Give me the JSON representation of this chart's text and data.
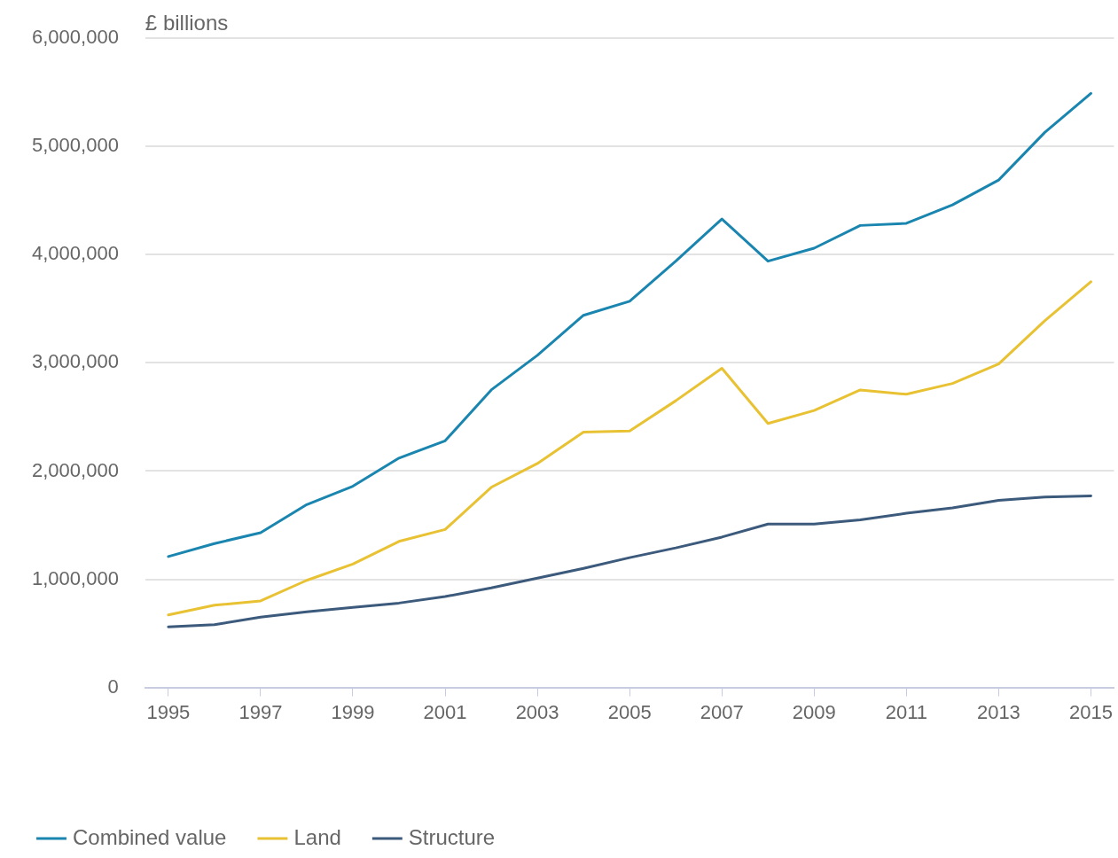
{
  "chart_data": {
    "type": "line",
    "ylabel": "£ billions",
    "x": [
      1995,
      1996,
      1997,
      1998,
      1999,
      2000,
      2001,
      2002,
      2003,
      2004,
      2005,
      2006,
      2007,
      2008,
      2009,
      2010,
      2011,
      2012,
      2013,
      2014,
      2015
    ],
    "series": [
      {
        "name": "Combined value",
        "color": "#1a86b0",
        "values": [
          1210000,
          1330000,
          1430000,
          1690000,
          1860000,
          2120000,
          2280000,
          2750000,
          3070000,
          3440000,
          3570000,
          3940000,
          4330000,
          3940000,
          4060000,
          4270000,
          4290000,
          4460000,
          4690000,
          5130000,
          5490000
        ]
      },
      {
        "name": "Land",
        "color": "#e8c233",
        "values": [
          670000,
          760000,
          800000,
          990000,
          1140000,
          1350000,
          1460000,
          1850000,
          2070000,
          2360000,
          2370000,
          2650000,
          2950000,
          2440000,
          2560000,
          2750000,
          2710000,
          2810000,
          2990000,
          3390000,
          3750000
        ]
      },
      {
        "name": "Structure",
        "color": "#3c5a7c",
        "values": [
          560000,
          580000,
          650000,
          700000,
          740000,
          780000,
          840000,
          920000,
          1010000,
          1100000,
          1200000,
          1290000,
          1390000,
          1510000,
          1510000,
          1550000,
          1610000,
          1660000,
          1730000,
          1760000,
          1770000
        ]
      }
    ],
    "xlim": [
      1994.5,
      2015.5
    ],
    "xticks": [
      1995,
      1997,
      1999,
      2001,
      2003,
      2005,
      2007,
      2009,
      2011,
      2013,
      2015
    ],
    "ylim": [
      0,
      6000000
    ],
    "yticks": [
      0,
      {
        "value": 1000000,
        "label": "1,000,000"
      },
      {
        "value": 2000000,
        "label": "2,000,000"
      },
      {
        "value": 3000000,
        "label": "3,000,000"
      },
      {
        "value": 4000000,
        "label": "4,000,000"
      },
      {
        "value": 5000000,
        "label": "5,000,000"
      },
      {
        "value": 6000000,
        "label": "6,000,000"
      }
    ],
    "grid": "y",
    "legend": "bottom left",
    "marker": "none",
    "line_style": "solid"
  }
}
